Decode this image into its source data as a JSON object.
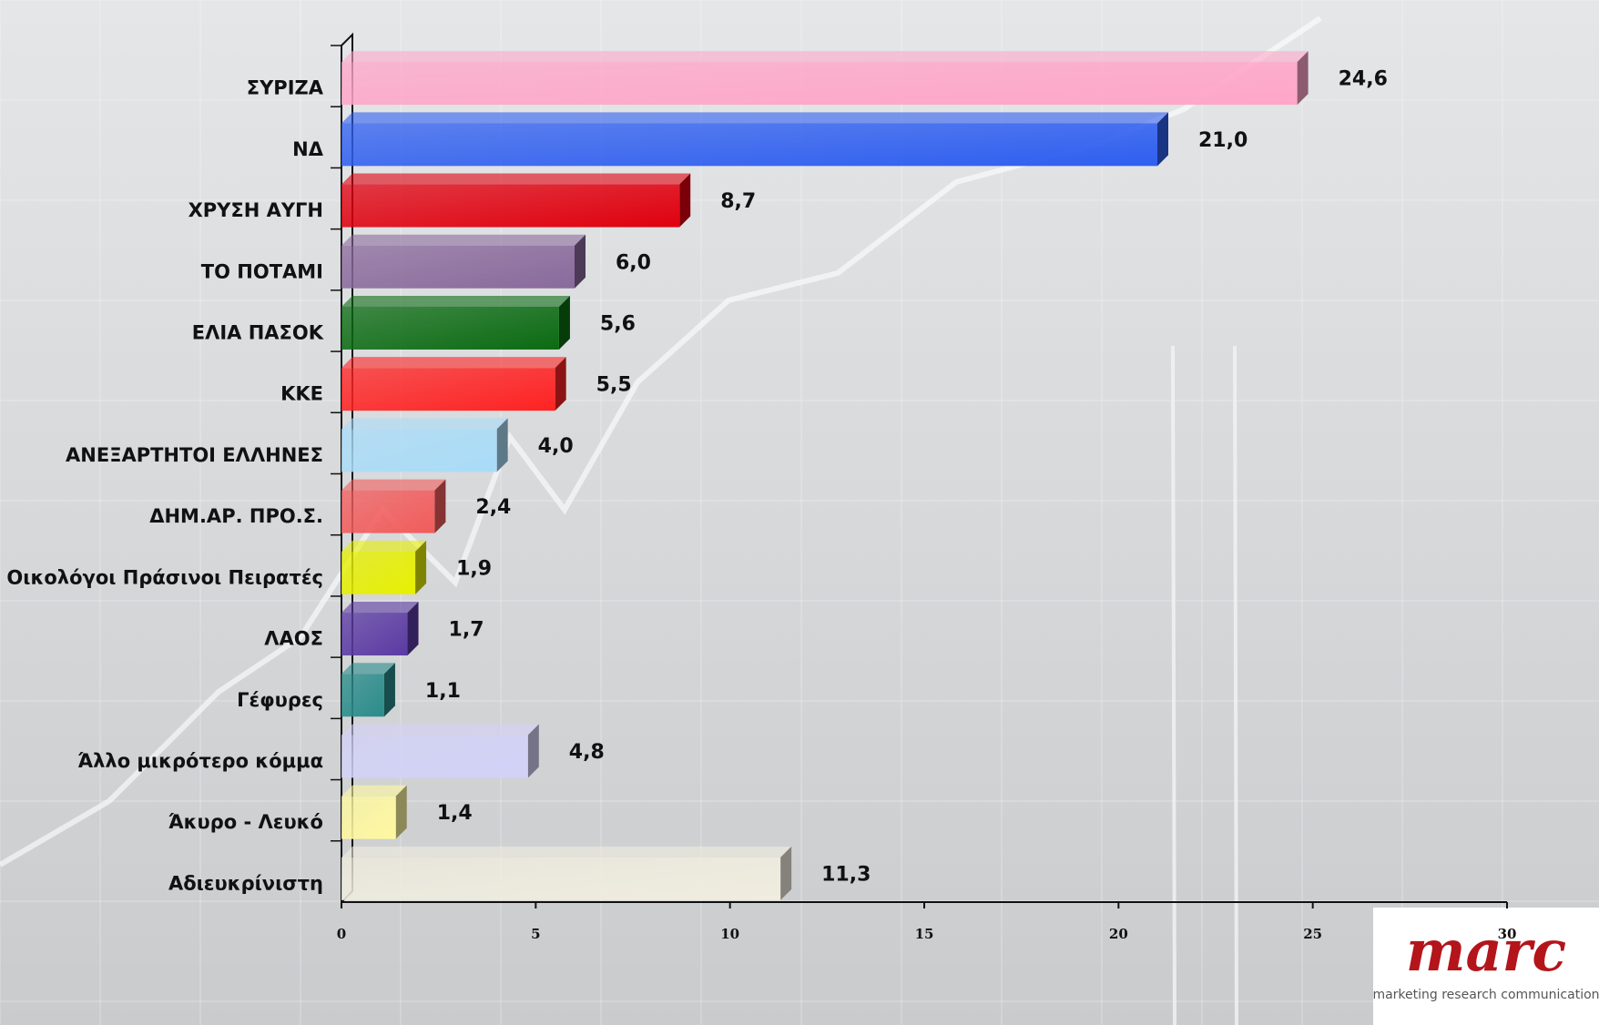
{
  "chart_data": {
    "type": "bar",
    "orientation": "horizontal",
    "categories": [
      "ΣΥΡΙΖΑ",
      "ΝΔ",
      "ΧΡΥΣΗ ΑΥΓΗ",
      "ΤΟ ΠΟΤΑΜΙ",
      "ΕΛΙΑ ΠΑΣΟΚ",
      "ΚΚΕ",
      "ΑΝΕΞΑΡΤΗΤΟΙ ΕΛΛΗΝΕΣ",
      "ΔΗΜ.ΑΡ. ΠΡΟ.Σ.",
      "Οικολόγοι Πράσινοι Πειρατές",
      "ΛΑΟΣ",
      "Γέφυρες",
      "Άλλο μικρότερο κόμμα",
      "Άκυρο - Λευκό",
      "Αδιευκρίνιστη"
    ],
    "values": [
      24.6,
      21.0,
      8.7,
      6.0,
      5.6,
      5.5,
      4.0,
      2.4,
      1.9,
      1.7,
      1.1,
      4.8,
      1.4,
      11.3
    ],
    "value_labels": [
      "24,6",
      "21,0",
      "8,7",
      "6,0",
      "5,6",
      "5,5",
      "4,0",
      "2,4",
      "1,9",
      "1,7",
      "1,1",
      "4,8",
      "1,4",
      "11,3"
    ],
    "colors": [
      "#ffa6c8",
      "#2f5ff0",
      "#e0000e",
      "#8a6a9c",
      "#0b6b12",
      "#ff2222",
      "#a9dcf8",
      "#f25c5c",
      "#e6f000",
      "#5b3aa3",
      "#2a8c8a",
      "#d2d2f8",
      "#fff8a0",
      "#f0eddf"
    ],
    "xlim": [
      0,
      30
    ],
    "xticks": [
      0,
      5,
      10,
      15,
      20,
      25,
      30
    ]
  },
  "logo": {
    "name": "marc",
    "tagline": "marketing research communication"
  }
}
